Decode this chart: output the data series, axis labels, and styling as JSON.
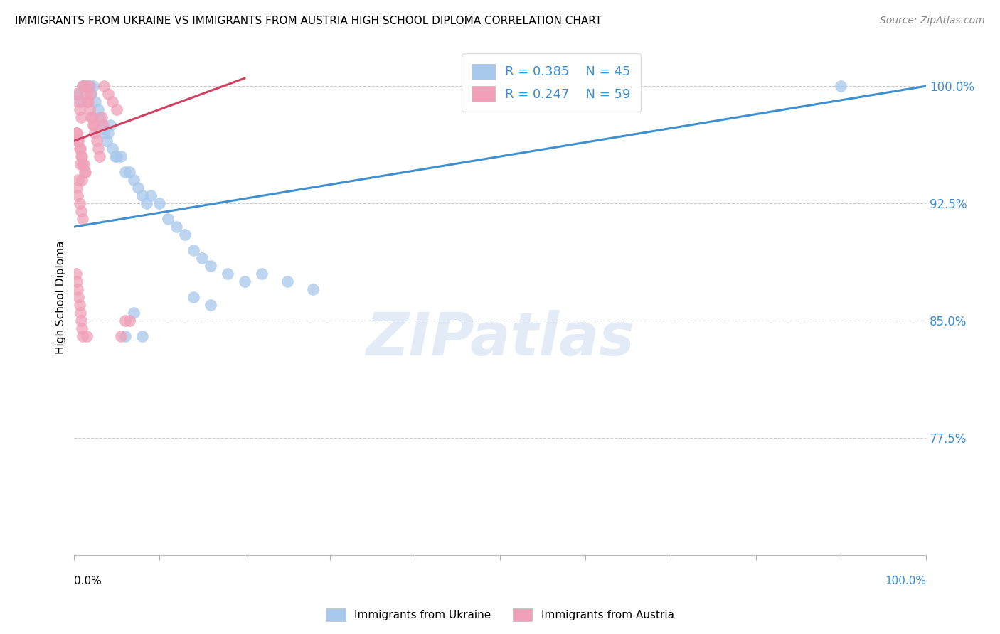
{
  "title": "IMMIGRANTS FROM UKRAINE VS IMMIGRANTS FROM AUSTRIA HIGH SCHOOL DIPLOMA CORRELATION CHART",
  "source": "Source: ZipAtlas.com",
  "ylabel": "High School Diploma",
  "ytick_labels": [
    "100.0%",
    "92.5%",
    "85.0%",
    "77.5%"
  ],
  "ytick_values": [
    1.0,
    0.925,
    0.85,
    0.775
  ],
  "xlim": [
    0.0,
    1.0
  ],
  "ylim": [
    0.7,
    1.03
  ],
  "ukraine_R": 0.385,
  "ukraine_N": 45,
  "austria_R": 0.247,
  "austria_N": 59,
  "ukraine_color": "#A8C8EC",
  "austria_color": "#F0A0B8",
  "ukraine_line_color": "#4090D0",
  "austria_line_color": "#D04060",
  "legend_text_color": "#3B8ED4",
  "watermark_color": "#D0DFF0",
  "ukraine_scatter_x": [
    0.005,
    0.008,
    0.01,
    0.012,
    0.015,
    0.018,
    0.02,
    0.022,
    0.025,
    0.028,
    0.03,
    0.032,
    0.035,
    0.038,
    0.04,
    0.042,
    0.045,
    0.048,
    0.05,
    0.055,
    0.06,
    0.065,
    0.07,
    0.075,
    0.08,
    0.085,
    0.09,
    0.1,
    0.11,
    0.12,
    0.13,
    0.14,
    0.15,
    0.16,
    0.18,
    0.2,
    0.22,
    0.25,
    0.28,
    0.14,
    0.16,
    0.06,
    0.08,
    0.9,
    0.07
  ],
  "ukraine_scatter_y": [
    0.995,
    0.99,
    1.0,
    1.0,
    1.0,
    1.0,
    0.995,
    1.0,
    0.99,
    0.985,
    0.98,
    0.975,
    0.97,
    0.965,
    0.97,
    0.975,
    0.96,
    0.955,
    0.955,
    0.955,
    0.945,
    0.945,
    0.94,
    0.935,
    0.93,
    0.925,
    0.93,
    0.925,
    0.915,
    0.91,
    0.905,
    0.895,
    0.89,
    0.885,
    0.88,
    0.875,
    0.88,
    0.875,
    0.87,
    0.865,
    0.86,
    0.84,
    0.84,
    1.0,
    0.855
  ],
  "austria_scatter_x": [
    0.002,
    0.004,
    0.006,
    0.008,
    0.01,
    0.012,
    0.014,
    0.016,
    0.018,
    0.02,
    0.022,
    0.024,
    0.026,
    0.028,
    0.03,
    0.032,
    0.034,
    0.003,
    0.005,
    0.007,
    0.009,
    0.011,
    0.013,
    0.015,
    0.017,
    0.019,
    0.021,
    0.023,
    0.002,
    0.004,
    0.006,
    0.008,
    0.01,
    0.012,
    0.005,
    0.007,
    0.009,
    0.003,
    0.004,
    0.006,
    0.008,
    0.01,
    0.035,
    0.04,
    0.045,
    0.05,
    0.055,
    0.06,
    0.065,
    0.002,
    0.003,
    0.004,
    0.005,
    0.006,
    0.007,
    0.008,
    0.009,
    0.01,
    0.015
  ],
  "austria_scatter_y": [
    0.995,
    0.99,
    0.985,
    0.98,
    1.0,
    1.0,
    0.995,
    0.99,
    0.985,
    0.98,
    0.975,
    0.97,
    0.965,
    0.96,
    0.955,
    0.98,
    0.975,
    0.97,
    0.965,
    0.96,
    0.955,
    0.95,
    0.945,
    0.99,
    1.0,
    0.995,
    0.98,
    0.975,
    0.97,
    0.965,
    0.96,
    0.955,
    0.95,
    0.945,
    0.94,
    0.95,
    0.94,
    0.935,
    0.93,
    0.925,
    0.92,
    0.915,
    1.0,
    0.995,
    0.99,
    0.985,
    0.84,
    0.85,
    0.85,
    0.88,
    0.875,
    0.87,
    0.865,
    0.86,
    0.855,
    0.85,
    0.845,
    0.84,
    0.84
  ],
  "xtick_positions": [
    0.0,
    0.1,
    0.2,
    0.3,
    0.4,
    0.5,
    0.6,
    0.7,
    0.8,
    0.9,
    1.0
  ],
  "background_color": "#FFFFFF",
  "grid_color": "#CCCCCC",
  "watermark": "ZIPatlas"
}
